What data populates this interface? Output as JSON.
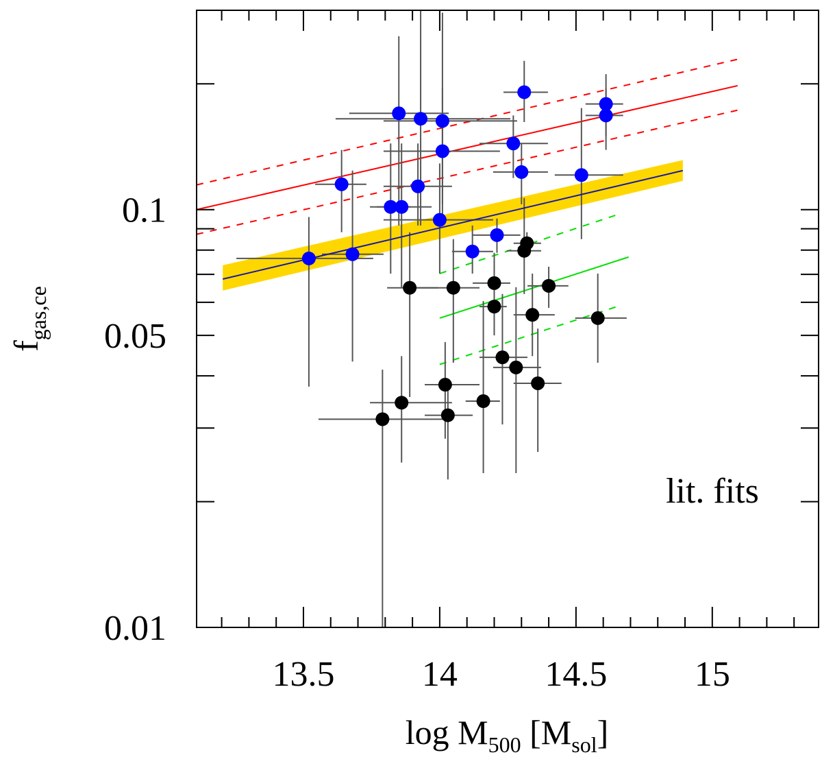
{
  "chart_data": {
    "type": "scatter",
    "xlabel": [
      "log M",
      "500",
      " [M",
      "sol",
      "]"
    ],
    "ylabel": [
      "f",
      "gas,ce"
    ],
    "annotation": {
      "text": "lit. fits",
      "color": "#0000ff"
    },
    "xlim": [
      13.108,
      15.39
    ],
    "ylim": [
      0.01,
      0.3
    ],
    "log_y": true,
    "xticks": [
      13.5,
      14,
      14.5,
      15
    ],
    "xminorticks": [
      13.2,
      13.3,
      13.4,
      13.6,
      13.7,
      13.8,
      13.9,
      14.1,
      14.2,
      14.3,
      14.4,
      14.6,
      14.7,
      14.8,
      14.9,
      15.1,
      15.2,
      15.3
    ],
    "yticks": [
      0.01,
      0.05,
      0.1
    ],
    "yminorticks": [
      0.02,
      0.03,
      0.04,
      0.06,
      0.07,
      0.08,
      0.09,
      0.2
    ],
    "series": [
      {
        "color": "#0000ff",
        "x": [
          13.52,
          13.64,
          13.68,
          13.82,
          13.86,
          13.85,
          13.92,
          13.93,
          14.0,
          14.01,
          14.01,
          14.12,
          14.21,
          14.27,
          14.3,
          14.31,
          14.52,
          14.61,
          14.61
        ],
        "y": [
          0.0764,
          0.115,
          0.0782,
          0.1015,
          0.1015,
          0.17,
          0.1137,
          0.165,
          0.0945,
          0.163,
          0.138,
          0.0794,
          0.0869,
          0.144,
          0.123,
          0.191,
          0.121,
          0.179,
          0.168
        ],
        "ylo": [
          0.0377,
          0.0883,
          0.0433,
          0.0703,
          0.0652,
          0.0916,
          0.0916,
          0.0916,
          0.0703,
          0.0916,
          0.103,
          0.0703,
          0.0788,
          0.119,
          0.103,
          0.162,
          0.085,
          0.15,
          0.139
        ],
        "yhi": [
          0.096,
          0.139,
          0.124,
          0.144,
          0.144,
          0.26,
          0.144,
          0.31,
          0.129,
          0.296,
          0.195,
          0.0916,
          0.0952,
          0.168,
          0.144,
          0.227,
          0.175,
          0.211,
          0.195
        ],
        "xlo": [
          13.254,
          13.543,
          13.568,
          13.744,
          13.769,
          13.668,
          13.794,
          13.618,
          13.794,
          13.794,
          13.794,
          14.045,
          14.121,
          14.146,
          14.196,
          14.234,
          14.422,
          14.535,
          14.535
        ],
        "xhi": [
          13.756,
          13.731,
          13.794,
          13.894,
          13.97,
          14.033,
          14.045,
          14.259,
          14.196,
          14.284,
          14.221,
          14.196,
          14.296,
          14.397,
          14.397,
          14.397,
          14.673,
          14.673,
          14.673
        ]
      },
      {
        "color": "#000000",
        "x": [
          13.79,
          13.86,
          13.89,
          14.02,
          14.03,
          14.05,
          14.16,
          14.2,
          14.2,
          14.23,
          14.28,
          14.31,
          14.32,
          14.34,
          14.36,
          14.4,
          14.58
        ],
        "y": [
          0.0315,
          0.0345,
          0.065,
          0.0381,
          0.0322,
          0.065,
          0.0348,
          0.0667,
          0.0586,
          0.0443,
          0.0419,
          0.0797,
          0.0831,
          0.056,
          0.0384,
          0.0657,
          0.055
        ],
        "ylo": [
          0.01,
          0.0248,
          0.0356,
          0.0283,
          0.0226,
          0.043,
          0.0234,
          0.056,
          0.05,
          0.0306,
          0.0234,
          0.0628,
          0.0788,
          0.0446,
          0.0263,
          0.0582,
          0.043
        ],
        "yhi": [
          0.0414,
          0.0446,
          0.0883,
          0.0482,
          0.0384,
          0.085,
          0.0604,
          0.0788,
          0.0758,
          0.0628,
          0.0652,
          0.1066,
          0.0883,
          0.0703,
          0.0519,
          0.073,
          0.0703
        ],
        "xlo": [
          13.555,
          13.744,
          13.807,
          13.945,
          13.945,
          13.894,
          14.095,
          14.121,
          14.146,
          14.146,
          14.196,
          14.246,
          14.271,
          14.271,
          14.271,
          14.322,
          14.497
        ],
        "xhi": [
          14.02,
          14.045,
          13.995,
          14.146,
          14.121,
          14.146,
          14.221,
          14.259,
          14.246,
          14.322,
          14.372,
          14.372,
          14.372,
          14.422,
          14.447,
          14.472,
          14.686
        ]
      }
    ],
    "band": {
      "color": "#ffd700",
      "x": [
        13.204,
        14.892
      ],
      "ylow": [
        0.064,
        0.1172
      ],
      "yhigh": [
        0.0736,
        0.1314
      ]
    },
    "fits": [
      {
        "color": "#ff0000",
        "dashed": false,
        "x": [
          13.108,
          15.093
        ],
        "y": [
          0.1,
          0.198
        ]
      },
      {
        "color": "#ff0000",
        "dashed": true,
        "x": [
          13.108,
          15.093
        ],
        "y": [
          0.1146,
          0.229
        ]
      },
      {
        "color": "#ff0000",
        "dashed": true,
        "x": [
          13.108,
          15.093
        ],
        "y": [
          0.0873,
          0.173
        ]
      },
      {
        "color": "#00e000",
        "dashed": false,
        "x": [
          14.0,
          14.693
        ],
        "y": [
          0.055,
          0.077
        ]
      },
      {
        "color": "#00e000",
        "dashed": true,
        "x": [
          14.0,
          14.661
        ],
        "y": [
          0.0703,
          0.0977
        ]
      },
      {
        "color": "#00e000",
        "dashed": true,
        "x": [
          14.0,
          14.661
        ],
        "y": [
          0.0426,
          0.0589
        ]
      },
      {
        "color": "#1a1aa0",
        "dashed": false,
        "x": [
          13.204,
          14.892
        ],
        "y": [
          0.0682,
          0.124
        ]
      }
    ]
  }
}
